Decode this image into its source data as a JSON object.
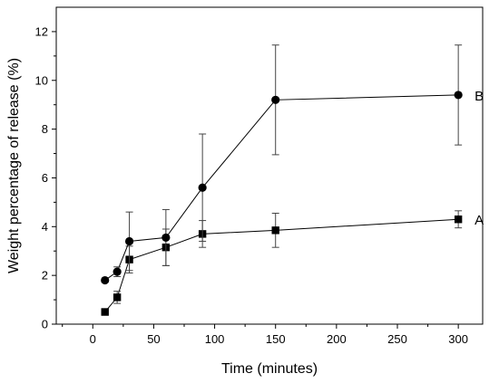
{
  "chart_data": {
    "type": "line",
    "xlabel": "Time (minutes)",
    "ylabel": "Weight percentage of release (%)",
    "xlim": [
      -30,
      320
    ],
    "ylim": [
      0,
      13
    ],
    "x_ticks": [
      0,
      50,
      100,
      150,
      200,
      250,
      300
    ],
    "y_ticks": [
      0,
      2,
      4,
      6,
      8,
      10,
      12
    ],
    "grid": false,
    "series": [
      {
        "name": "A",
        "marker": "square",
        "x": [
          10,
          20,
          30,
          60,
          90,
          150,
          300
        ],
        "y": [
          0.5,
          1.1,
          2.65,
          3.15,
          3.7,
          3.85,
          4.3
        ],
        "error": [
          0.05,
          0.25,
          0.55,
          0.75,
          0.55,
          0.7,
          0.35
        ]
      },
      {
        "name": "B",
        "marker": "circle",
        "x": [
          10,
          20,
          30,
          60,
          90,
          150,
          300
        ],
        "y": [
          1.8,
          2.15,
          3.4,
          3.55,
          5.6,
          9.2,
          9.4
        ],
        "error": [
          0.0,
          0.2,
          1.2,
          1.15,
          2.2,
          2.25,
          2.05
        ]
      }
    ],
    "color": "#000000"
  }
}
